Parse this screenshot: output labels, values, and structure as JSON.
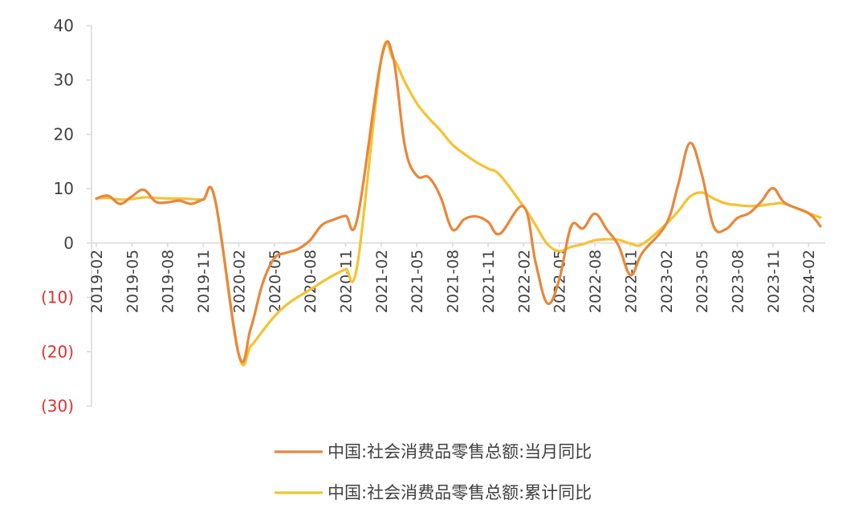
{
  "chart_data": {
    "type": "line",
    "title": "",
    "xlabel": "",
    "ylabel": "",
    "ylim": [
      -30,
      40
    ],
    "yticks": [
      40,
      30,
      20,
      10,
      0,
      -10,
      -20,
      -30
    ],
    "ytick_labels": [
      "40",
      "30",
      "20",
      "10",
      "0",
      "(10)",
      "(20)",
      "(30)"
    ],
    "negative_tick_color": "#e03030",
    "positive_tick_color": "#404040",
    "x_tick_labels": [
      "2019-02",
      "2019-05",
      "2019-08",
      "2019-11",
      "2020-02",
      "2020-05",
      "2020-08",
      "2020-11",
      "2021-02",
      "2021-05",
      "2021-08",
      "2021-11",
      "2022-02",
      "2022-05",
      "2022-08",
      "2022-11",
      "2023-02",
      "2023-05",
      "2023-08",
      "2023-11",
      "2024-02"
    ],
    "grid": false,
    "legend_position": "bottom",
    "series": [
      {
        "name": "中国:社会消费品零售总额:当月同比",
        "color": "#E8873A",
        "points": [
          [
            "2019-02",
            8.2
          ],
          [
            "2019-03",
            8.7
          ],
          [
            "2019-04",
            7.2
          ],
          [
            "2019-05",
            8.6
          ],
          [
            "2019-06",
            9.8
          ],
          [
            "2019-07",
            7.6
          ],
          [
            "2019-08",
            7.5
          ],
          [
            "2019-09",
            7.8
          ],
          [
            "2019-10",
            7.2
          ],
          [
            "2019-11",
            8.0
          ],
          [
            "2019-12",
            8.0
          ],
          [
            "2020-02",
            -20.5
          ],
          [
            "2020-03",
            -15.8
          ],
          [
            "2020-04",
            -7.5
          ],
          [
            "2020-05",
            -2.8
          ],
          [
            "2020-06",
            -1.8
          ],
          [
            "2020-07",
            -1.1
          ],
          [
            "2020-08",
            0.5
          ],
          [
            "2020-09",
            3.3
          ],
          [
            "2020-10",
            4.3
          ],
          [
            "2020-11",
            5.0
          ],
          [
            "2020-12",
            4.6
          ],
          [
            "2021-02",
            33.8
          ],
          [
            "2021-03",
            34.2
          ],
          [
            "2021-04",
            17.7
          ],
          [
            "2021-05",
            12.4
          ],
          [
            "2021-06",
            12.1
          ],
          [
            "2021-07",
            8.5
          ],
          [
            "2021-08",
            2.5
          ],
          [
            "2021-09",
            4.4
          ],
          [
            "2021-10",
            4.9
          ],
          [
            "2021-11",
            3.9
          ],
          [
            "2021-12",
            1.7
          ],
          [
            "2022-02",
            6.7
          ],
          [
            "2022-03",
            -3.5
          ],
          [
            "2022-04",
            -11.1
          ],
          [
            "2022-05",
            -6.7
          ],
          [
            "2022-06",
            3.1
          ],
          [
            "2022-07",
            2.7
          ],
          [
            "2022-08",
            5.4
          ],
          [
            "2022-09",
            2.5
          ],
          [
            "2022-10",
            -0.5
          ],
          [
            "2022-11",
            -5.9
          ],
          [
            "2022-12",
            -1.8
          ],
          [
            "2023-02",
            3.5
          ],
          [
            "2023-03",
            10.6
          ],
          [
            "2023-04",
            18.4
          ],
          [
            "2023-05",
            12.7
          ],
          [
            "2023-06",
            3.1
          ],
          [
            "2023-07",
            2.5
          ],
          [
            "2023-08",
            4.6
          ],
          [
            "2023-09",
            5.5
          ],
          [
            "2023-10",
            7.6
          ],
          [
            "2023-11",
            10.1
          ],
          [
            "2023-12",
            7.4
          ],
          [
            "2024-02",
            5.5
          ],
          [
            "2024-03",
            3.1
          ]
        ]
      },
      {
        "name": "中国:社会消费品零售总额:累计同比",
        "color": "#F5C232",
        "points": [
          [
            "2019-02",
            8.2
          ],
          [
            "2019-03",
            8.3
          ],
          [
            "2019-04",
            8.0
          ],
          [
            "2019-05",
            8.1
          ],
          [
            "2019-06",
            8.4
          ],
          [
            "2019-07",
            8.3
          ],
          [
            "2019-08",
            8.2
          ],
          [
            "2019-09",
            8.2
          ],
          [
            "2019-10",
            8.1
          ],
          [
            "2019-11",
            8.0
          ],
          [
            "2019-12",
            8.0
          ],
          [
            "2020-02",
            -20.5
          ],
          [
            "2020-03",
            -19.0
          ],
          [
            "2020-04",
            -16.2
          ],
          [
            "2020-05",
            -13.5
          ],
          [
            "2020-06",
            -11.4
          ],
          [
            "2020-07",
            -9.9
          ],
          [
            "2020-08",
            -8.6
          ],
          [
            "2020-09",
            -7.2
          ],
          [
            "2020-10",
            -5.9
          ],
          [
            "2020-11",
            -4.8
          ],
          [
            "2020-12",
            -3.9
          ],
          [
            "2021-02",
            33.8
          ],
          [
            "2021-03",
            33.9
          ],
          [
            "2021-04",
            29.6
          ],
          [
            "2021-05",
            25.7
          ],
          [
            "2021-06",
            23.0
          ],
          [
            "2021-07",
            20.7
          ],
          [
            "2021-08",
            18.1
          ],
          [
            "2021-09",
            16.4
          ],
          [
            "2021-10",
            14.9
          ],
          [
            "2021-11",
            13.7
          ],
          [
            "2021-12",
            12.5
          ],
          [
            "2022-02",
            6.7
          ],
          [
            "2022-03",
            3.3
          ],
          [
            "2022-04",
            -0.2
          ],
          [
            "2022-05",
            -1.5
          ],
          [
            "2022-06",
            -0.7
          ],
          [
            "2022-07",
            -0.2
          ],
          [
            "2022-08",
            0.5
          ],
          [
            "2022-09",
            0.7
          ],
          [
            "2022-10",
            0.6
          ],
          [
            "2022-11",
            -0.1
          ],
          [
            "2022-12",
            -0.2
          ],
          [
            "2023-02",
            3.5
          ],
          [
            "2023-03",
            5.8
          ],
          [
            "2023-04",
            8.5
          ],
          [
            "2023-05",
            9.3
          ],
          [
            "2023-06",
            8.2
          ],
          [
            "2023-07",
            7.3
          ],
          [
            "2023-08",
            7.0
          ],
          [
            "2023-09",
            6.8
          ],
          [
            "2023-10",
            6.9
          ],
          [
            "2023-11",
            7.2
          ],
          [
            "2023-12",
            7.2
          ],
          [
            "2024-02",
            5.5
          ],
          [
            "2024-03",
            4.7
          ]
        ]
      }
    ]
  }
}
